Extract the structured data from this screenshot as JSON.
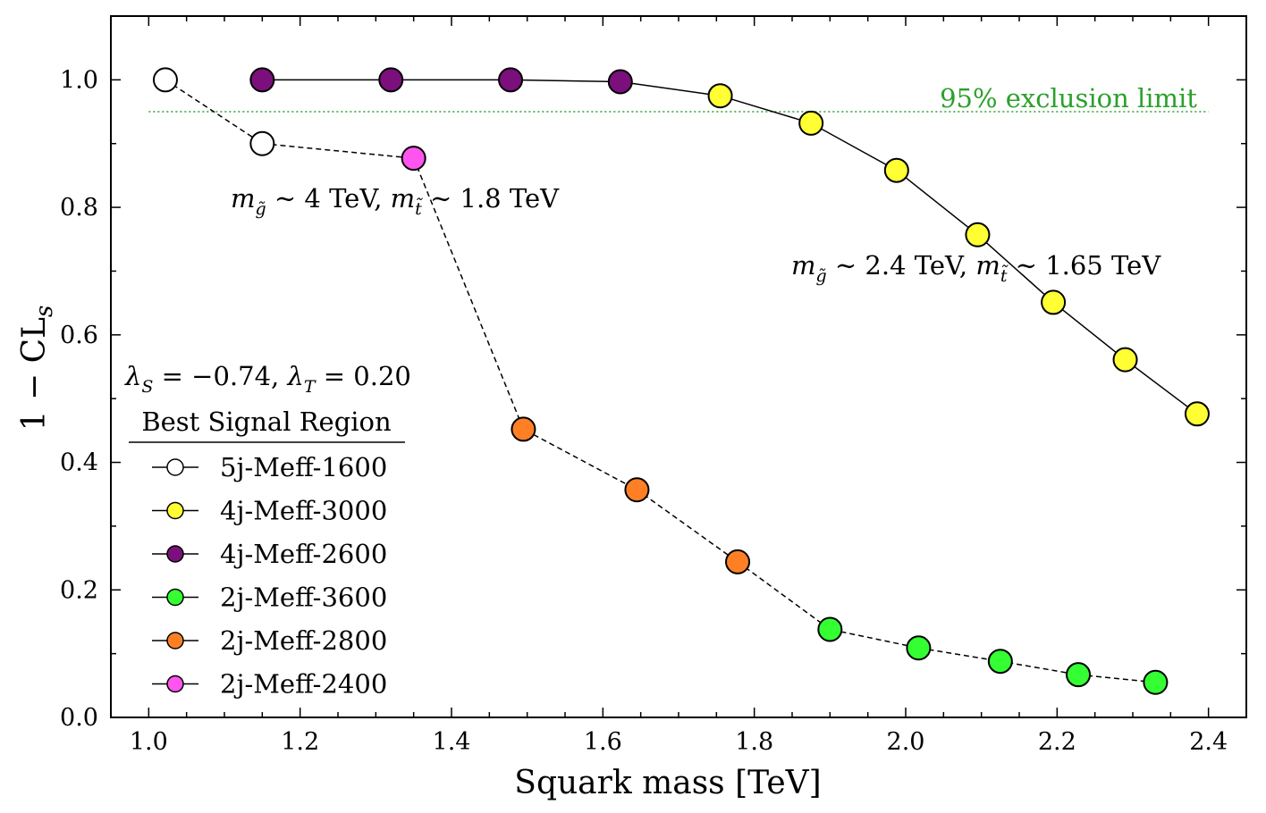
{
  "chart_data": {
    "type": "line",
    "xlabel": "Squark mass [TeV]",
    "ylabel": "1 − CL",
    "ylabel_sub": "s",
    "xlim": [
      0.95,
      2.45
    ],
    "ylim": [
      0.0,
      1.1
    ],
    "xticks": [
      1.0,
      1.2,
      1.4,
      1.6,
      1.8,
      2.0,
      2.2,
      2.4
    ],
    "xtick_labels": [
      "1.0",
      "1.2",
      "1.4",
      "1.6",
      "1.8",
      "2.0",
      "2.2",
      "2.4"
    ],
    "yticks": [
      0.0,
      0.2,
      0.4,
      0.6,
      0.8,
      1.0
    ],
    "ytick_labels": [
      "0.0",
      "0.2",
      "0.4",
      "0.6",
      "0.8",
      "1.0"
    ],
    "grid": false,
    "limit_line": {
      "value": 0.95,
      "label": "95% exclusion limit",
      "color": "#2ca02c"
    },
    "series": [
      {
        "name": "upper",
        "line_style": "solid",
        "points": [
          {
            "x": 1.15,
            "y": 1.0,
            "region": "4j-Meff-2600"
          },
          {
            "x": 1.32,
            "y": 1.0,
            "region": "4j-Meff-2600"
          },
          {
            "x": 1.478,
            "y": 1.0,
            "region": "4j-Meff-2600"
          },
          {
            "x": 1.623,
            "y": 0.997,
            "region": "4j-Meff-2600"
          },
          {
            "x": 1.755,
            "y": 0.975,
            "region": "4j-Meff-3000"
          },
          {
            "x": 1.875,
            "y": 0.932,
            "region": "4j-Meff-3000"
          },
          {
            "x": 1.988,
            "y": 0.858,
            "region": "4j-Meff-3000"
          },
          {
            "x": 2.095,
            "y": 0.757,
            "region": "4j-Meff-3000"
          },
          {
            "x": 2.195,
            "y": 0.651,
            "region": "4j-Meff-3000"
          },
          {
            "x": 2.29,
            "y": 0.561,
            "region": "4j-Meff-3000"
          },
          {
            "x": 2.385,
            "y": 0.476,
            "region": "4j-Meff-3000"
          }
        ]
      },
      {
        "name": "lower",
        "line_style": "dashed",
        "points": [
          {
            "x": 1.022,
            "y": 1.0,
            "region": "5j-Meff-1600"
          },
          {
            "x": 1.15,
            "y": 0.9,
            "region": "5j-Meff-1600"
          },
          {
            "x": 1.35,
            "y": 0.877,
            "region": "2j-Meff-2400"
          },
          {
            "x": 1.495,
            "y": 0.452,
            "region": "2j-Meff-2800"
          },
          {
            "x": 1.645,
            "y": 0.357,
            "region": "2j-Meff-2800"
          },
          {
            "x": 1.778,
            "y": 0.244,
            "region": "2j-Meff-2800"
          },
          {
            "x": 1.9,
            "y": 0.138,
            "region": "2j-Meff-3600"
          },
          {
            "x": 2.017,
            "y": 0.109,
            "region": "2j-Meff-3600"
          },
          {
            "x": 2.125,
            "y": 0.088,
            "region": "2j-Meff-3600"
          },
          {
            "x": 2.228,
            "y": 0.067,
            "region": "2j-Meff-3600"
          },
          {
            "x": 2.33,
            "y": 0.055,
            "region": "2j-Meff-3600"
          }
        ]
      }
    ],
    "annotations": [
      {
        "text_a": "m",
        "sub_a": "g̃",
        "text_mid": " ∼ 4 TeV,  ",
        "text_b": "m",
        "sub_b": "t̃",
        "text_end": " ∼ 1.8 TeV",
        "anchor_x": 1.11,
        "anchor_y": 0.8
      },
      {
        "text_a": "m",
        "sub_a": "g̃",
        "text_mid": " ∼ 2.4 TeV,  ",
        "text_b": "m",
        "sub_b": "t̃",
        "text_end": " ∼ 1.65 TeV",
        "anchor_x": 1.855,
        "anchor_y": 0.7
      }
    ],
    "param_text": {
      "l1": "λ",
      "s1": "S",
      "t1": " = −0.74, ",
      "l2": "λ",
      "s2": "T",
      "t2": " = 0.20"
    },
    "legend": {
      "title": "Best Signal Region",
      "placement": "lower-left",
      "entries": [
        {
          "label": "5j-Meff-1600",
          "color": "#ffffff"
        },
        {
          "label": "4j-Meff-3000",
          "color": "#ffff33"
        },
        {
          "label": "4j-Meff-2600",
          "color": "#7b0f7b"
        },
        {
          "label": "2j-Meff-3600",
          "color": "#33ff33"
        },
        {
          "label": "2j-Meff-2800",
          "color": "#ff8024"
        },
        {
          "label": "2j-Meff-2400",
          "color": "#ff55ee"
        }
      ]
    }
  }
}
